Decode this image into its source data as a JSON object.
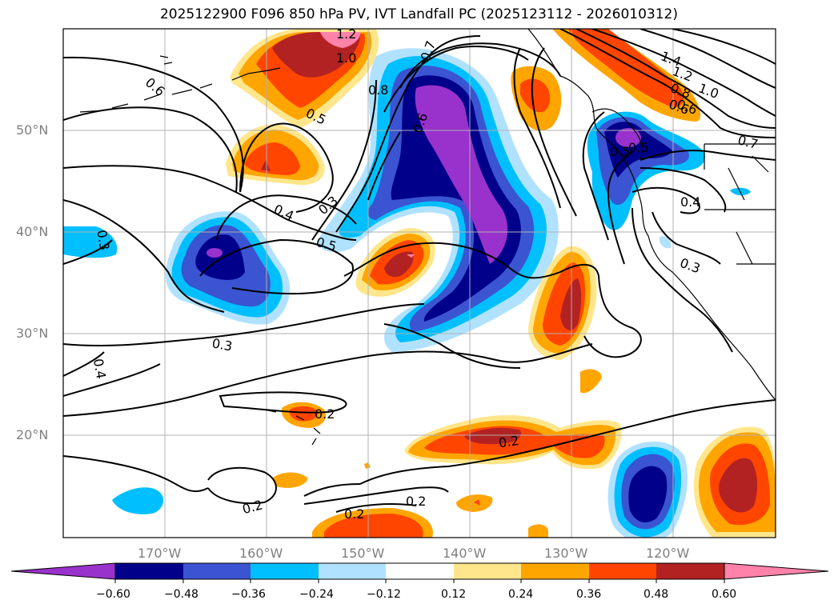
{
  "title": "2025122900 F096 850 hPa PV, IVT Landfall PC (2025123112 - 2026010312)",
  "lon_labels": [
    "170°W",
    "160°W",
    "150°W",
    "140°W",
    "130°W",
    "120°W"
  ],
  "lat_labels": [
    "50°N",
    "40°N",
    "30°N",
    "20°N"
  ],
  "colorbar": {
    "tick_labels": [
      "−0.60",
      "−0.48",
      "−0.36",
      "−0.24",
      "−0.12",
      "0.12",
      "0.24",
      "0.36",
      "0.48",
      "0.60"
    ],
    "colors": [
      "#9932cc",
      "#00008b",
      "#3a54d2",
      "#00bfff",
      "#b0e2ff",
      "#ffffff",
      "#ffe68c",
      "#ffa500",
      "#ff4500",
      "#b22222",
      "#ff82ab"
    ]
  },
  "contour_labels": [
    "1.2",
    "1.0",
    "0.8",
    "0.7",
    "0.6",
    "0.6",
    "0.5",
    "0.5",
    "0.4",
    "0.3",
    "0.3",
    "0.5",
    "0.3",
    "0.4",
    "0.6",
    "1.4",
    "1.2",
    "1.0",
    "0.8",
    "0.6",
    "0.7",
    "0.5",
    "0.4",
    "0.3",
    "0.2",
    "0.2",
    "0.2",
    "0.2",
    "0.2"
  ]
}
